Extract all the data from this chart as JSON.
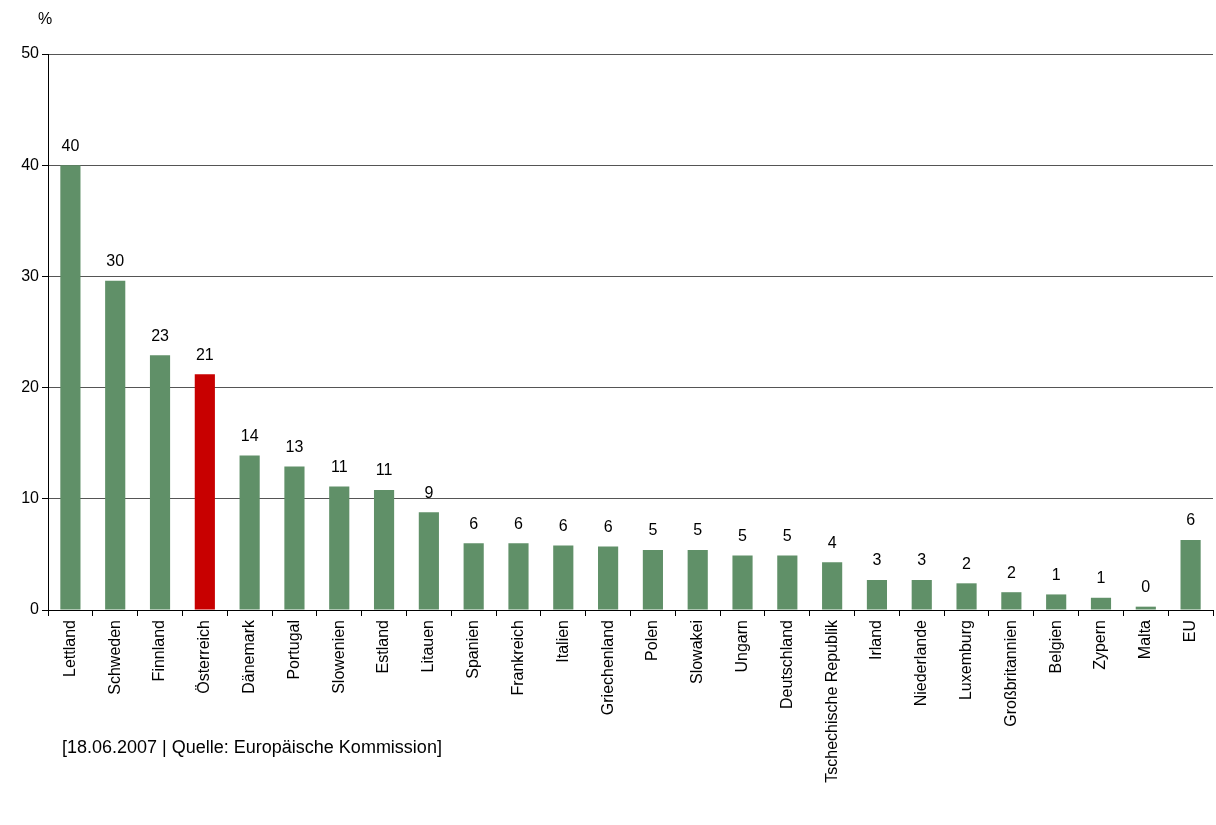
{
  "chart_data": {
    "type": "bar",
    "ylabel": "%",
    "categories": [
      "Lettland",
      "Schweden",
      "Finnland",
      "Österreich",
      "Dänemark",
      "Portugal",
      "Slowenien",
      "Estland",
      "Litauen",
      "Spanien",
      "Frankreich",
      "Italien",
      "Griechenland",
      "Polen",
      "Slowakei",
      "Ungarn",
      "Deutschland",
      "Tschechische Republik",
      "Irland",
      "Niederlande",
      "Luxemburg",
      "Großbritannien",
      "Belgien",
      "Zypern",
      "Malta",
      "EU"
    ],
    "values": [
      40.0,
      29.6,
      22.9,
      21.2,
      13.9,
      12.9,
      11.1,
      10.8,
      8.8,
      6.0,
      6.0,
      5.8,
      5.7,
      5.4,
      5.4,
      4.9,
      4.9,
      4.3,
      2.7,
      2.7,
      2.4,
      1.6,
      1.4,
      1.1,
      0.3,
      6.3
    ],
    "value_labels": [
      "40",
      "30",
      "23",
      "21",
      "14",
      "13",
      "11",
      "11",
      "9",
      "6",
      "6",
      "6",
      "6",
      "5",
      "5",
      "5",
      "5",
      "4",
      "3",
      "3",
      "2",
      "2",
      "1",
      "1",
      "0",
      "6"
    ],
    "colors": [
      "#609068",
      "#609068",
      "#609068",
      "#c80000",
      "#609068",
      "#609068",
      "#609068",
      "#609068",
      "#609068",
      "#609068",
      "#609068",
      "#609068",
      "#609068",
      "#609068",
      "#609068",
      "#609068",
      "#609068",
      "#609068",
      "#609068",
      "#609068",
      "#609068",
      "#609068",
      "#609068",
      "#609068",
      "#609068",
      "#609068"
    ],
    "ylim": [
      0,
      50
    ],
    "yticks": [
      0,
      10,
      20,
      30,
      40,
      50
    ],
    "grid": "y",
    "annotations": [
      "[18.06.2007 | Quelle: Europäische Kommission]"
    ]
  }
}
